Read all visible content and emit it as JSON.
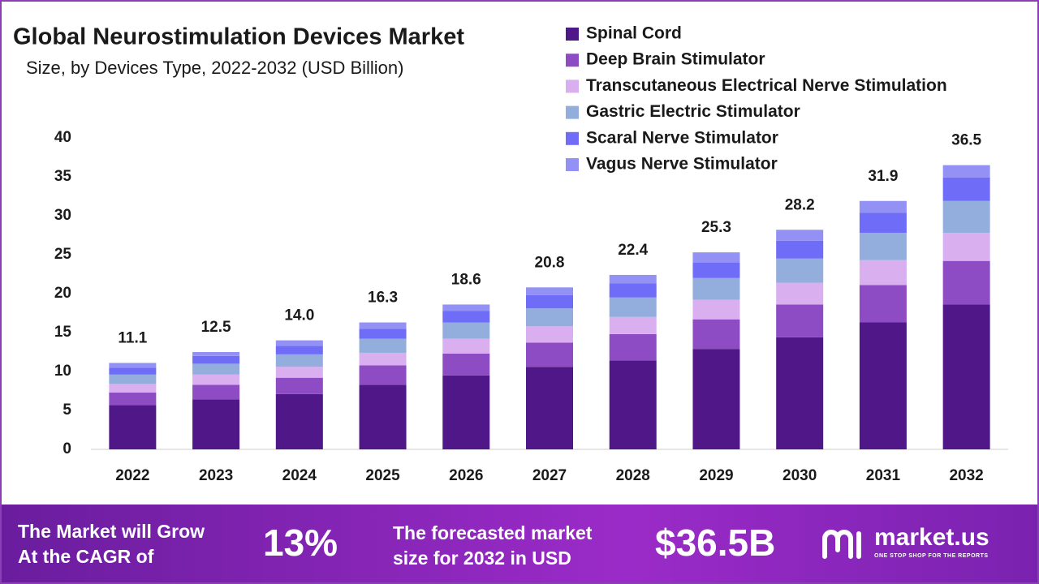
{
  "chart_data": {
    "type": "bar",
    "stacked": true,
    "title": "Global Neurostimulation Devices Market",
    "subtitle": "Size, by Devices  Type, 2022-2032 (USD Billion)",
    "categories": [
      "2022",
      "2023",
      "2024",
      "2025",
      "2026",
      "2027",
      "2028",
      "2029",
      "2030",
      "2031",
      "2032"
    ],
    "series": [
      {
        "name": "Spinal Cord",
        "color": "#4f1787",
        "values": [
          5.7,
          6.4,
          7.1,
          8.3,
          9.5,
          10.6,
          11.4,
          12.9,
          14.4,
          16.3,
          18.6
        ]
      },
      {
        "name": "Deep Brain Stimulator",
        "color": "#8e4cc4",
        "values": [
          1.6,
          1.9,
          2.1,
          2.5,
          2.8,
          3.1,
          3.4,
          3.8,
          4.2,
          4.8,
          5.6
        ]
      },
      {
        "name": "Transcutaneous Electrical Nerve Stimulation",
        "color": "#d9aff0",
        "values": [
          1.1,
          1.3,
          1.4,
          1.6,
          1.9,
          2.1,
          2.2,
          2.5,
          2.8,
          3.2,
          3.6
        ]
      },
      {
        "name": "Gastric Electric Stimulator",
        "color": "#93aedc",
        "values": [
          1.2,
          1.4,
          1.6,
          1.8,
          2.1,
          2.3,
          2.5,
          2.8,
          3.1,
          3.5,
          4.1
        ]
      },
      {
        "name": "Scaral Nerve Stimulator",
        "color": "#6f6cf7",
        "values": [
          0.9,
          1.0,
          1.1,
          1.3,
          1.5,
          1.7,
          1.8,
          2.0,
          2.3,
          2.6,
          3.0
        ]
      },
      {
        "name": "Vagus Nerve Stimulator",
        "color": "#9491f5",
        "values": [
          0.6,
          0.5,
          0.7,
          0.8,
          0.8,
          1.0,
          1.1,
          1.3,
          1.4,
          1.5,
          1.6
        ]
      }
    ],
    "totals": [
      11.1,
      12.5,
      14.0,
      16.3,
      18.6,
      20.8,
      22.4,
      25.3,
      28.2,
      31.9,
      36.5
    ],
    "totals_labels": [
      "11.1",
      "12.5",
      "14.0",
      "16.3",
      "18.6",
      "20.8",
      "22.4",
      "25.3",
      "28.2",
      "31.9",
      "36.5"
    ],
    "ylim": [
      0,
      40
    ],
    "yticks": [
      0,
      5,
      10,
      15,
      20,
      25,
      30,
      35,
      40
    ],
    "grid": false
  },
  "footer": {
    "cagr_text_1": "The Market will Grow",
    "cagr_text_2": "At the CAGR of",
    "cagr_value": "13%",
    "forecast_text_1": "The forecasted market",
    "forecast_text_2": "size for 2032 in USD",
    "forecast_value": "$36.5B",
    "brand": "market.us",
    "tagline": "ONE STOP SHOP FOR THE REPORTS"
  }
}
